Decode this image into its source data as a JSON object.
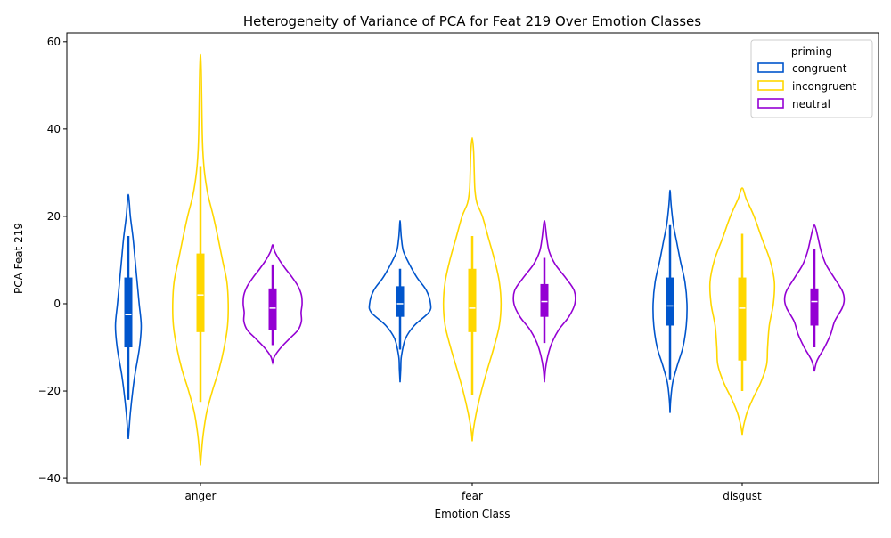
{
  "chart_data": {
    "type": "violin",
    "title": "Heterogeneity of Variance of PCA for Feat 219 Over Emotion Classes",
    "xlabel": "Emotion Class",
    "ylabel": "PCA Feat 219",
    "categories": [
      "anger",
      "fear",
      "disgust"
    ],
    "ylim": [
      -41,
      62
    ],
    "yticks": [
      -40,
      -20,
      0,
      20,
      40,
      60
    ],
    "ytick_labels": [
      "−40",
      "−20",
      "0",
      "20",
      "40",
      "60"
    ],
    "grid": false,
    "legend": {
      "title": "priming",
      "placement": "top-right"
    },
    "colors": {
      "congruent": "#0055cc",
      "incongruent": "#ffd700",
      "neutral": "#9400d3"
    },
    "series": [
      {
        "name": "congruent",
        "violins": [
          {
            "category": "anger",
            "ymin": -31,
            "ymax": 25,
            "q1": -10,
            "median": -2.5,
            "q3": 6,
            "whisker_low": -22,
            "whisker_high": 15.5,
            "profile": [
              [
                -31,
                0.0
              ],
              [
                -28,
                0.03
              ],
              [
                -25,
                0.06
              ],
              [
                -20,
                0.13
              ],
              [
                -16,
                0.2
              ],
              [
                -10,
                0.33
              ],
              [
                -5,
                0.38
              ],
              [
                0,
                0.32
              ],
              [
                5,
                0.26
              ],
              [
                10,
                0.2
              ],
              [
                15,
                0.14
              ],
              [
                20,
                0.06
              ],
              [
                23,
                0.03
              ],
              [
                25,
                0.0
              ]
            ]
          },
          {
            "category": "fear",
            "ymin": -18,
            "ymax": 19,
            "q1": -3,
            "median": 0,
            "q3": 4,
            "whisker_low": -10.5,
            "whisker_high": 8,
            "profile": [
              [
                -18,
                0.0
              ],
              [
                -15,
                0.02
              ],
              [
                -12,
                0.04
              ],
              [
                -8,
                0.16
              ],
              [
                -5,
                0.42
              ],
              [
                -2,
                0.85
              ],
              [
                0,
                0.9
              ],
              [
                3,
                0.78
              ],
              [
                6,
                0.5
              ],
              [
                9,
                0.28
              ],
              [
                12,
                0.1
              ],
              [
                15,
                0.04
              ],
              [
                17,
                0.02
              ],
              [
                19,
                0.0
              ]
            ]
          },
          {
            "category": "disgust",
            "ymin": -25,
            "ymax": 26,
            "q1": -5,
            "median": -0.5,
            "q3": 6,
            "whisker_low": -17.5,
            "whisker_high": 18,
            "profile": [
              [
                -25,
                0.0
              ],
              [
                -22,
                0.02
              ],
              [
                -18,
                0.08
              ],
              [
                -14,
                0.22
              ],
              [
                -10,
                0.38
              ],
              [
                -5,
                0.48
              ],
              [
                0,
                0.5
              ],
              [
                5,
                0.44
              ],
              [
                10,
                0.3
              ],
              [
                14,
                0.2
              ],
              [
                18,
                0.1
              ],
              [
                22,
                0.04
              ],
              [
                24,
                0.02
              ],
              [
                26,
                0.0
              ]
            ]
          }
        ]
      },
      {
        "name": "incongruent",
        "violins": [
          {
            "category": "anger",
            "ymin": -37,
            "ymax": 57,
            "q1": -6.5,
            "median": 2,
            "q3": 11.5,
            "whisker_low": -22.5,
            "whisker_high": 31.5,
            "profile": [
              [
                -37,
                0.0
              ],
              [
                -34,
                0.03
              ],
              [
                -30,
                0.08
              ],
              [
                -25,
                0.18
              ],
              [
                -20,
                0.35
              ],
              [
                -15,
                0.55
              ],
              [
                -10,
                0.7
              ],
              [
                -5,
                0.8
              ],
              [
                0,
                0.82
              ],
              [
                5,
                0.78
              ],
              [
                10,
                0.65
              ],
              [
                15,
                0.52
              ],
              [
                20,
                0.38
              ],
              [
                25,
                0.22
              ],
              [
                30,
                0.12
              ],
              [
                35,
                0.07
              ],
              [
                40,
                0.05
              ],
              [
                45,
                0.04
              ],
              [
                50,
                0.03
              ],
              [
                54,
                0.02
              ],
              [
                57,
                0.0
              ]
            ]
          },
          {
            "category": "fear",
            "ymin": -31.5,
            "ymax": 38,
            "q1": -6.5,
            "median": -1,
            "q3": 8,
            "whisker_low": -21,
            "whisker_high": 15.5,
            "profile": [
              [
                -31.5,
                0.0
              ],
              [
                -29,
                0.03
              ],
              [
                -25,
                0.12
              ],
              [
                -20,
                0.27
              ],
              [
                -15,
                0.45
              ],
              [
                -10,
                0.64
              ],
              [
                -5,
                0.8
              ],
              [
                0,
                0.85
              ],
              [
                5,
                0.8
              ],
              [
                10,
                0.66
              ],
              [
                15,
                0.48
              ],
              [
                20,
                0.3
              ],
              [
                23,
                0.14
              ],
              [
                26,
                0.08
              ],
              [
                30,
                0.06
              ],
              [
                35,
                0.04
              ],
              [
                38,
                0.0
              ]
            ]
          },
          {
            "category": "disgust",
            "ymin": -30,
            "ymax": 26.5,
            "q1": -13,
            "median": -1,
            "q3": 6,
            "whisker_low": -20,
            "whisker_high": 16,
            "profile": [
              [
                -30,
                0.0
              ],
              [
                -28,
                0.04
              ],
              [
                -25,
                0.14
              ],
              [
                -22,
                0.3
              ],
              [
                -18,
                0.55
              ],
              [
                -14,
                0.72
              ],
              [
                -10,
                0.75
              ],
              [
                -5,
                0.8
              ],
              [
                0,
                0.92
              ],
              [
                5,
                0.95
              ],
              [
                10,
                0.82
              ],
              [
                15,
                0.58
              ],
              [
                20,
                0.35
              ],
              [
                24,
                0.12
              ],
              [
                26.5,
                0.0
              ]
            ]
          }
        ]
      },
      {
        "name": "neutral",
        "violins": [
          {
            "category": "anger",
            "ymin": -13.5,
            "ymax": 13.5,
            "q1": -6,
            "median": -1,
            "q3": 3.5,
            "whisker_low": -9.5,
            "whisker_high": 9,
            "profile": [
              [
                -13.5,
                0.0
              ],
              [
                -12,
                0.06
              ],
              [
                -10,
                0.25
              ],
              [
                -8,
                0.5
              ],
              [
                -6,
                0.75
              ],
              [
                -4,
                0.85
              ],
              [
                -2,
                0.84
              ],
              [
                0,
                0.87
              ],
              [
                2,
                0.85
              ],
              [
                4,
                0.75
              ],
              [
                6,
                0.58
              ],
              [
                8,
                0.38
              ],
              [
                10,
                0.2
              ],
              [
                12,
                0.06
              ],
              [
                13.5,
                0.0
              ]
            ]
          },
          {
            "category": "fear",
            "ymin": -18,
            "ymax": 19,
            "q1": -3,
            "median": 0.5,
            "q3": 4.5,
            "whisker_low": -9,
            "whisker_high": 10.5,
            "profile": [
              [
                -18,
                0.0
              ],
              [
                -15,
                0.03
              ],
              [
                -12,
                0.1
              ],
              [
                -9,
                0.22
              ],
              [
                -6,
                0.42
              ],
              [
                -3,
                0.72
              ],
              [
                0,
                0.9
              ],
              [
                3,
                0.88
              ],
              [
                6,
                0.62
              ],
              [
                9,
                0.32
              ],
              [
                12,
                0.14
              ],
              [
                15,
                0.07
              ],
              [
                17,
                0.04
              ],
              [
                19,
                0.0
              ]
            ]
          },
          {
            "category": "disgust",
            "ymin": -15.5,
            "ymax": 18,
            "q1": -5,
            "median": 0.5,
            "q3": 3.5,
            "whisker_low": -10,
            "whisker_high": 12.5,
            "profile": [
              [
                -15.5,
                0.0
              ],
              [
                -13,
                0.08
              ],
              [
                -10,
                0.3
              ],
              [
                -7,
                0.48
              ],
              [
                -4,
                0.6
              ],
              [
                -1,
                0.82
              ],
              [
                1,
                0.88
              ],
              [
                3,
                0.82
              ],
              [
                6,
                0.58
              ],
              [
                9,
                0.34
              ],
              [
                12,
                0.2
              ],
              [
                15,
                0.11
              ],
              [
                17,
                0.05
              ],
              [
                18,
                0.0
              ]
            ]
          }
        ]
      }
    ]
  }
}
